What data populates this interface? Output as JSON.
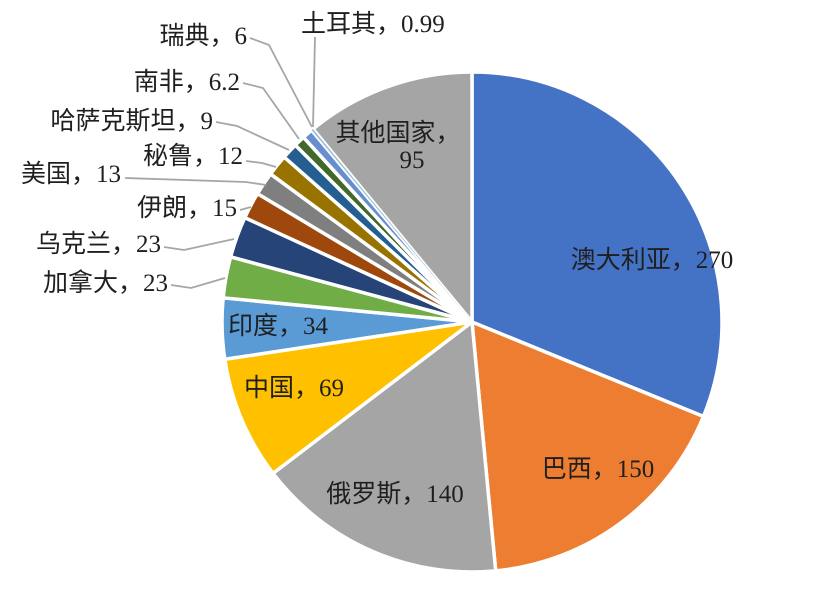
{
  "chart_data": {
    "type": "pie",
    "title": "",
    "legend": "none",
    "background": "#FFFFFF",
    "label_color": "#1F1F1F",
    "leader_line_color": "#A6A6A6",
    "slice_border_color": "#FFFFFF",
    "label_separator": "，",
    "start_angle_deg": 0,
    "direction": "clockwise",
    "slices": [
      {
        "id": "australia",
        "label": "澳大利亚",
        "value": 270,
        "color": "#4472C4"
      },
      {
        "id": "brazil",
        "label": "巴西",
        "value": 150,
        "color": "#ED7D31"
      },
      {
        "id": "russia",
        "label": "俄罗斯",
        "value": 140,
        "color": "#A5A5A5"
      },
      {
        "id": "china",
        "label": "中国",
        "value": 69,
        "color": "#FFC000"
      },
      {
        "id": "india",
        "label": "印度",
        "value": 34,
        "color": "#5B9BD5"
      },
      {
        "id": "canada",
        "label": "加拿大",
        "value": 23,
        "color": "#70AD47"
      },
      {
        "id": "ukraine",
        "label": "乌克兰",
        "value": 23,
        "color": "#264478"
      },
      {
        "id": "iran",
        "label": "伊朗",
        "value": 15,
        "color": "#9E480E"
      },
      {
        "id": "usa",
        "label": "美国",
        "value": 13,
        "color": "#7F7F7F"
      },
      {
        "id": "peru",
        "label": "秘鲁",
        "value": 12,
        "color": "#997300"
      },
      {
        "id": "kazakhstan",
        "label": "哈萨克斯坦",
        "value": 9,
        "color": "#255E91"
      },
      {
        "id": "south-africa",
        "label": "南非",
        "value": 6.2,
        "color": "#43682B"
      },
      {
        "id": "sweden",
        "label": "瑞典",
        "value": 6,
        "color": "#698ED0"
      },
      {
        "id": "turkey",
        "label": "土耳其",
        "value": 0.99,
        "color": "#9DC3D4"
      },
      {
        "id": "other",
        "label": "其他国家",
        "value": 95,
        "color": "#A5A5A5"
      }
    ]
  }
}
